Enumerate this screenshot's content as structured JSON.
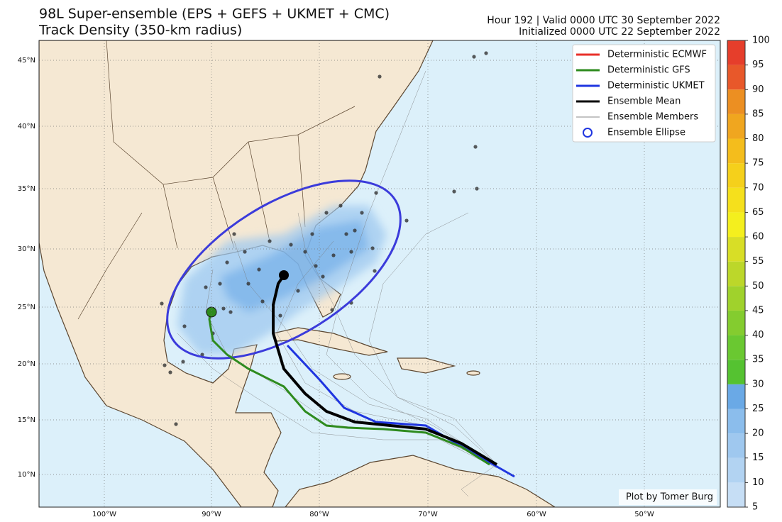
{
  "header": {
    "title": "98L Super-ensemble (EPS + GEFS + UKMET + CMC)",
    "subtitle": "Track Density (350-km radius)",
    "valid": "Hour 192 | Valid 0000 UTC 30 September 2022",
    "initialized": "Initialized 0000 UTC 22 September 2022"
  },
  "legend": {
    "items": [
      {
        "label": "Deterministic ECMWF",
        "color": "#e8302a"
      },
      {
        "label": "Deterministic GFS",
        "color": "#2e8b1e"
      },
      {
        "label": "Deterministic UKMET",
        "color": "#1f35e0"
      },
      {
        "label": "Ensemble Mean",
        "color": "#000000"
      },
      {
        "label": "Ensemble Members",
        "color": "#888888"
      },
      {
        "label": "Ensemble Ellipse",
        "color": "#1f35e0"
      }
    ]
  },
  "map": {
    "lat_labels": [
      "45°N",
      "40°N",
      "35°N",
      "30°N",
      "25°N",
      "20°N",
      "15°N",
      "10°N"
    ],
    "lon_labels": [
      "100°W",
      "90°W",
      "80°W",
      "70°W",
      "60°W",
      "50°W"
    ],
    "credit": "Plot by Tomer Burg"
  },
  "colorbar": {
    "ticks": [
      5,
      10,
      15,
      20,
      25,
      30,
      35,
      40,
      45,
      50,
      55,
      60,
      65,
      70,
      75,
      80,
      85,
      90,
      95,
      100
    ],
    "colors": [
      "#c6def5",
      "#b2d3f2",
      "#9fc8ef",
      "#8bbdec",
      "#6aa9e6",
      "#55c231",
      "#6ac831",
      "#84cc2f",
      "#a0d22c",
      "#bcd72a",
      "#d8de26",
      "#f4ef1e",
      "#f5e01c",
      "#f5d01b",
      "#f4bd1c",
      "#f0a61f",
      "#ec8f22",
      "#e8582a",
      "#e63e2b"
    ]
  }
}
